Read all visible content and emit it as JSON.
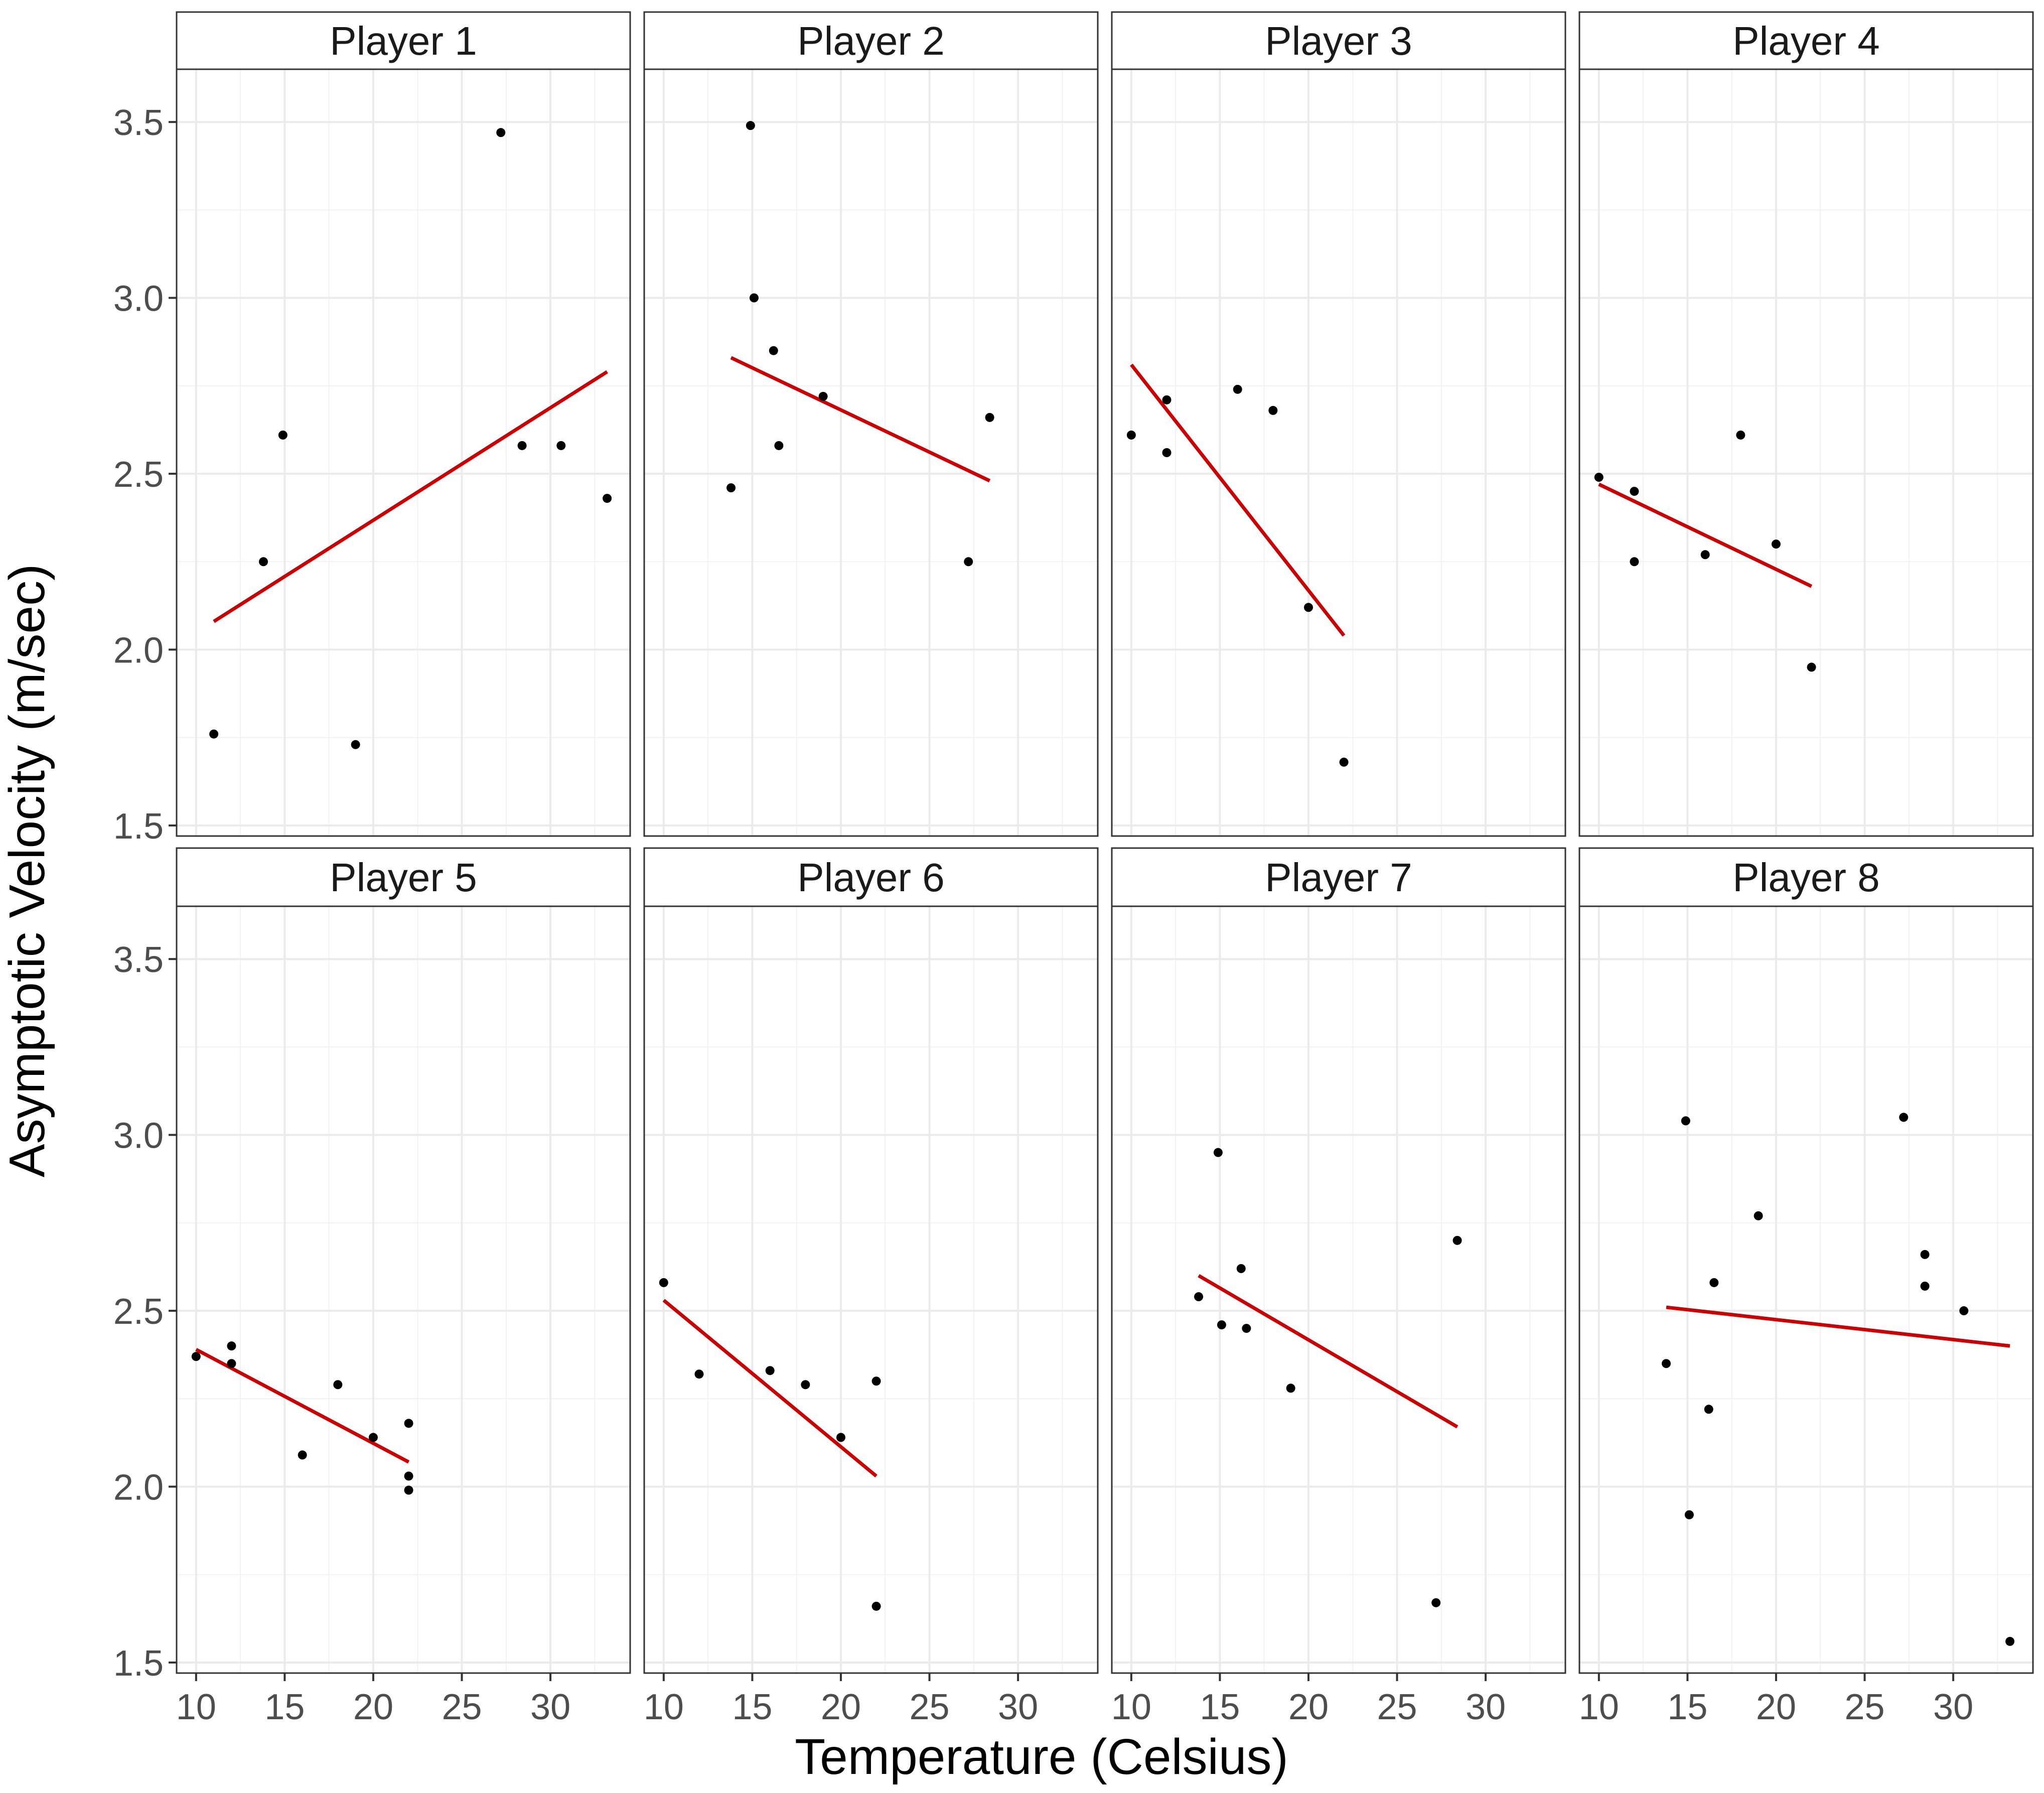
{
  "chart_data": {
    "type": "scatter",
    "facet_layout": {
      "rows": 2,
      "cols": 4
    },
    "xlabel": "Temperature (Celsius)",
    "ylabel": "Asymptotic Velocity (m/sec)",
    "xlim": [
      8.9,
      34.5
    ],
    "ylim": [
      1.47,
      3.65
    ],
    "x_ticks": [
      10,
      15,
      20,
      25,
      30
    ],
    "y_ticks": [
      1.5,
      2.0,
      2.5,
      3.0,
      3.5
    ],
    "y_tick_labels": [
      "1.5",
      "2.0",
      "2.5",
      "3.0",
      "3.5"
    ],
    "grid": true,
    "point_color": "#000000",
    "line_color": "#cc0000",
    "panels": [
      {
        "title": "Player 1",
        "points": [
          [
            11.0,
            1.76
          ],
          [
            13.8,
            2.25
          ],
          [
            14.9,
            2.61
          ],
          [
            19.0,
            1.73
          ],
          [
            27.2,
            3.47
          ],
          [
            28.4,
            2.58
          ],
          [
            30.6,
            2.58
          ],
          [
            33.2,
            2.43
          ]
        ],
        "fit": [
          [
            11.0,
            2.08
          ],
          [
            33.2,
            2.79
          ]
        ]
      },
      {
        "title": "Player 2",
        "points": [
          [
            13.8,
            2.46
          ],
          [
            14.9,
            3.49
          ],
          [
            15.1,
            3.0
          ],
          [
            16.2,
            2.85
          ],
          [
            16.5,
            2.58
          ],
          [
            19.0,
            2.72
          ],
          [
            27.2,
            2.25
          ],
          [
            28.4,
            2.66
          ]
        ],
        "fit": [
          [
            13.8,
            2.83
          ],
          [
            28.4,
            2.48
          ]
        ]
      },
      {
        "title": "Player 3",
        "points": [
          [
            10.0,
            2.61
          ],
          [
            12.0,
            2.56
          ],
          [
            12.0,
            2.71
          ],
          [
            16.0,
            2.74
          ],
          [
            18.0,
            2.68
          ],
          [
            20.0,
            2.12
          ],
          [
            22.0,
            1.68
          ]
        ],
        "fit": [
          [
            10.0,
            2.81
          ],
          [
            22.0,
            2.04
          ]
        ]
      },
      {
        "title": "Player 4",
        "points": [
          [
            10.0,
            2.49
          ],
          [
            12.0,
            2.45
          ],
          [
            12.0,
            2.25
          ],
          [
            16.0,
            2.27
          ],
          [
            18.0,
            2.61
          ],
          [
            20.0,
            2.3
          ],
          [
            22.0,
            1.95
          ]
        ],
        "fit": [
          [
            10.0,
            2.47
          ],
          [
            22.0,
            2.18
          ]
        ]
      },
      {
        "title": "Player 5",
        "points": [
          [
            10.0,
            2.37
          ],
          [
            12.0,
            2.4
          ],
          [
            12.0,
            2.35
          ],
          [
            16.0,
            2.09
          ],
          [
            18.0,
            2.29
          ],
          [
            20.0,
            2.14
          ],
          [
            22.0,
            2.18
          ],
          [
            22.0,
            2.03
          ],
          [
            22.0,
            1.99
          ]
        ],
        "fit": [
          [
            10.0,
            2.39
          ],
          [
            22.0,
            2.07
          ]
        ]
      },
      {
        "title": "Player 6",
        "points": [
          [
            10.0,
            2.58
          ],
          [
            12.0,
            2.32
          ],
          [
            16.0,
            2.33
          ],
          [
            18.0,
            2.29
          ],
          [
            20.0,
            2.14
          ],
          [
            22.0,
            2.3
          ],
          [
            22.0,
            1.66
          ]
        ],
        "fit": [
          [
            10.0,
            2.53
          ],
          [
            22.0,
            2.03
          ]
        ]
      },
      {
        "title": "Player 7",
        "points": [
          [
            13.8,
            2.54
          ],
          [
            14.9,
            2.95
          ],
          [
            15.1,
            2.46
          ],
          [
            16.2,
            2.62
          ],
          [
            16.5,
            2.45
          ],
          [
            19.0,
            2.28
          ],
          [
            27.2,
            1.67
          ],
          [
            28.4,
            2.7
          ]
        ],
        "fit": [
          [
            13.8,
            2.6
          ],
          [
            28.4,
            2.17
          ]
        ]
      },
      {
        "title": "Player 8",
        "points": [
          [
            13.8,
            2.35
          ],
          [
            14.9,
            3.04
          ],
          [
            15.1,
            1.92
          ],
          [
            16.2,
            2.22
          ],
          [
            16.5,
            2.58
          ],
          [
            19.0,
            2.77
          ],
          [
            27.2,
            3.05
          ],
          [
            28.4,
            2.66
          ],
          [
            28.4,
            2.57
          ],
          [
            30.6,
            2.5
          ],
          [
            33.2,
            1.56
          ]
        ],
        "fit": [
          [
            13.8,
            2.51
          ],
          [
            33.2,
            2.4
          ]
        ]
      }
    ]
  }
}
